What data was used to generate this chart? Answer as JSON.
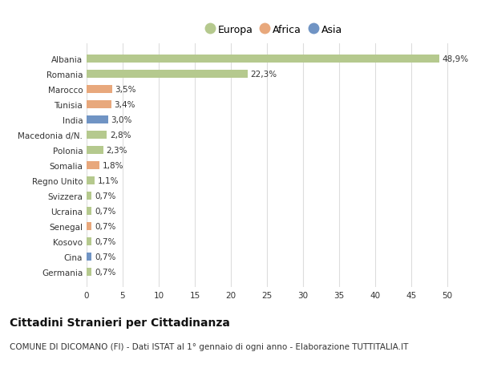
{
  "countries": [
    "Albania",
    "Romania",
    "Marocco",
    "Tunisia",
    "India",
    "Macedonia d/N.",
    "Polonia",
    "Somalia",
    "Regno Unito",
    "Svizzera",
    "Ucraina",
    "Senegal",
    "Kosovo",
    "Cina",
    "Germania"
  ],
  "values": [
    48.9,
    22.3,
    3.5,
    3.4,
    3.0,
    2.8,
    2.3,
    1.8,
    1.1,
    0.7,
    0.7,
    0.7,
    0.7,
    0.7,
    0.7
  ],
  "labels": [
    "48,9%",
    "22,3%",
    "3,5%",
    "3,4%",
    "3,0%",
    "2,8%",
    "2,3%",
    "1,8%",
    "1,1%",
    "0,7%",
    "0,7%",
    "0,7%",
    "0,7%",
    "0,7%",
    "0,7%"
  ],
  "continents": [
    "Europa",
    "Europa",
    "Africa",
    "Africa",
    "Asia",
    "Europa",
    "Europa",
    "Africa",
    "Europa",
    "Europa",
    "Europa",
    "Africa",
    "Europa",
    "Asia",
    "Europa"
  ],
  "colors": {
    "Europa": "#b5c98e",
    "Africa": "#e8a87c",
    "Asia": "#7094c4"
  },
  "title": "Cittadini Stranieri per Cittadinanza",
  "subtitle": "COMUNE DI DICOMANO (FI) - Dati ISTAT al 1° gennaio di ogni anno - Elaborazione TUTTITALIA.IT",
  "xlim": [
    0,
    52
  ],
  "xticks": [
    0,
    5,
    10,
    15,
    20,
    25,
    30,
    35,
    40,
    45,
    50
  ],
  "background_color": "#ffffff",
  "grid_color": "#dddddd",
  "bar_height": 0.55,
  "title_fontsize": 10,
  "subtitle_fontsize": 7.5,
  "tick_fontsize": 7.5,
  "label_fontsize": 7.5,
  "legend_fontsize": 9
}
